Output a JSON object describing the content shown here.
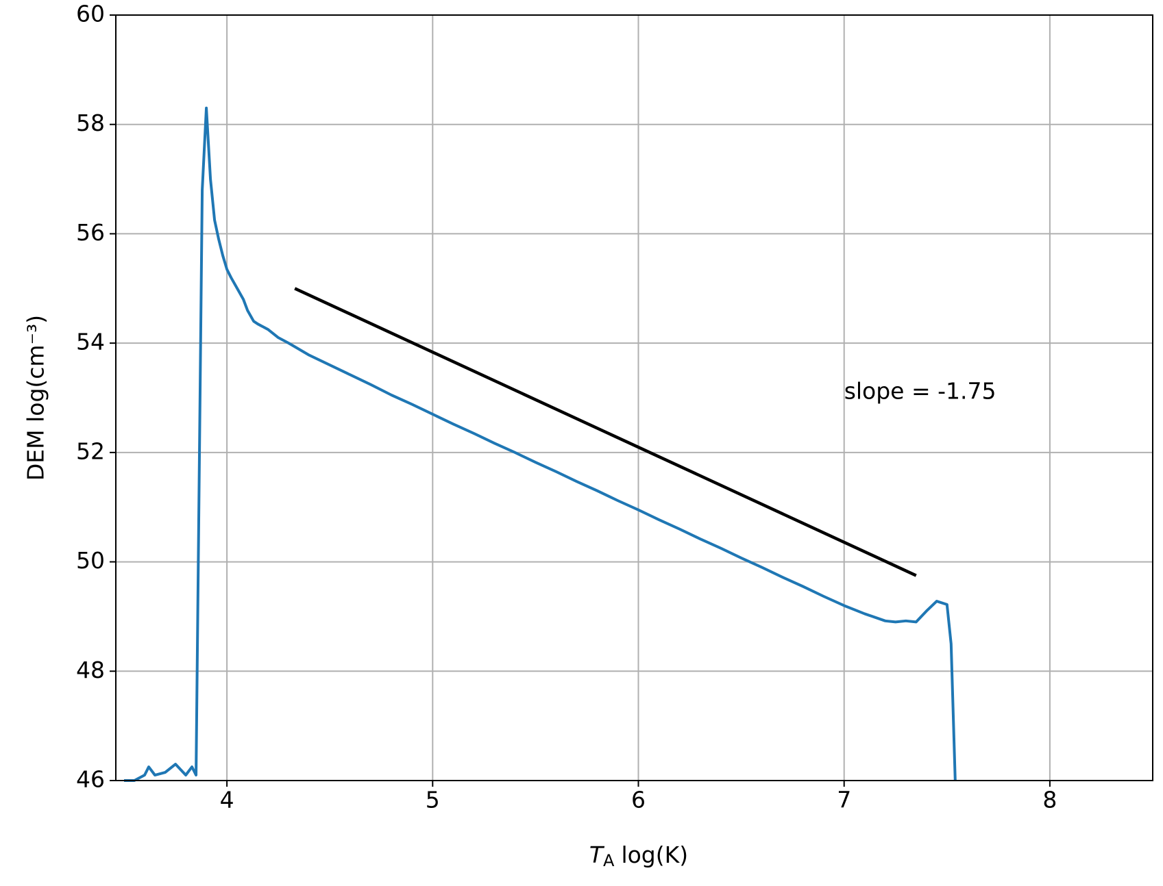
{
  "chart_data": {
    "type": "line",
    "xlabel": {
      "symbol": "T",
      "subscript": "A",
      "unit": "log(K)"
    },
    "ylabel": "DEM log(cm⁻³)",
    "annotation": {
      "text": "slope = -1.75",
      "x": 7.0,
      "y": 53.1
    },
    "xlim": [
      3.46,
      8.5
    ],
    "xticks": [
      4,
      5,
      6,
      7,
      8
    ],
    "ylim": [
      46,
      60
    ],
    "yticks": [
      46,
      48,
      50,
      52,
      54,
      56,
      58,
      60
    ],
    "grid": true,
    "series": [
      {
        "color": "#1f77b4",
        "step": true,
        "x": [
          3.5,
          3.55,
          3.6,
          3.62,
          3.65,
          3.7,
          3.75,
          3.8,
          3.83,
          3.85,
          3.88,
          3.9,
          3.92,
          3.94,
          3.96,
          3.98,
          4.0,
          4.02,
          4.05,
          4.08,
          4.1,
          4.13,
          4.15,
          4.2,
          4.25,
          4.3,
          4.4,
          4.5,
          4.6,
          4.7,
          4.8,
          4.9,
          5.0,
          5.1,
          5.2,
          5.3,
          5.4,
          5.5,
          5.6,
          5.7,
          5.8,
          5.9,
          6.0,
          6.1,
          6.2,
          6.3,
          6.4,
          6.5,
          6.6,
          6.7,
          6.8,
          6.9,
          7.0,
          7.1,
          7.2,
          7.25,
          7.3,
          7.35,
          7.4,
          7.45,
          7.5,
          7.52,
          7.54
        ],
        "values": [
          46.0,
          46.0,
          46.1,
          46.25,
          46.1,
          46.15,
          46.3,
          46.1,
          46.25,
          46.1,
          56.8,
          58.3,
          57.0,
          56.25,
          55.9,
          55.6,
          55.35,
          55.2,
          55.0,
          54.8,
          54.6,
          54.4,
          54.35,
          54.25,
          54.1,
          54.0,
          53.78,
          53.6,
          53.42,
          53.24,
          53.05,
          52.88,
          52.7,
          52.52,
          52.35,
          52.17,
          52.0,
          51.82,
          51.65,
          51.47,
          51.3,
          51.12,
          50.95,
          50.77,
          50.6,
          50.42,
          50.25,
          50.07,
          49.9,
          49.72,
          49.55,
          49.37,
          49.2,
          49.05,
          48.92,
          48.9,
          48.92,
          48.9,
          49.1,
          49.28,
          49.22,
          48.5,
          46.0
        ]
      },
      {
        "color": "#000000",
        "step": false,
        "x": [
          4.33,
          7.35
        ],
        "values": [
          55.0,
          49.75
        ]
      }
    ]
  }
}
